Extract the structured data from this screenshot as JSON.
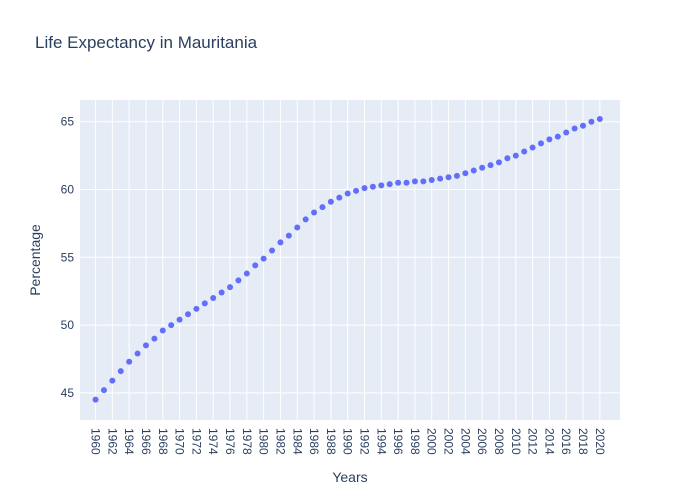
{
  "chart_data": {
    "type": "scatter",
    "title": "Life Expectancy in Mauritania",
    "xlabel": "Years",
    "ylabel": "Percentage",
    "xlim": [
      1958.2,
      1962.0
    ],
    "ylim": [
      43.0,
      66.6
    ],
    "x_tick_labels": [
      "1960",
      "1962",
      "1964",
      "1966",
      "1968",
      "1970",
      "1972",
      "1974",
      "1976",
      "1978",
      "1980",
      "1982",
      "1984",
      "1986",
      "1988",
      "1990",
      "1992",
      "1994",
      "1996",
      "1998",
      "2000",
      "2002",
      "2004",
      "2006",
      "2008",
      "2010",
      "2012",
      "2014",
      "2016",
      "2018",
      "2020"
    ],
    "y_ticks": [
      45,
      50,
      55,
      60,
      65
    ],
    "grid": true,
    "marker_color": "#636efa",
    "plot_background": "#e5ecf6",
    "series": [
      {
        "x": [
          1960,
          1961,
          1962,
          1963,
          1964,
          1965,
          1966,
          1967,
          1968,
          1969,
          1970,
          1971,
          1972,
          1973,
          1974,
          1975,
          1976,
          1977,
          1978,
          1979,
          1980,
          1981,
          1982,
          1983,
          1984,
          1985,
          1986,
          1987,
          1988,
          1989,
          1990,
          1991,
          1992,
          1993,
          1994,
          1995,
          1996,
          1997,
          1998,
          1999,
          2000,
          2001,
          2002,
          2003,
          2004,
          2005,
          2006,
          2007,
          2008,
          2009,
          2010,
          2011,
          2012,
          2013,
          2014,
          2015,
          2016,
          2017,
          2018,
          2019,
          2020
        ],
        "y": [
          44.5,
          45.2,
          45.9,
          46.6,
          47.3,
          47.9,
          48.5,
          49.0,
          49.6,
          50.0,
          50.4,
          50.8,
          51.2,
          51.6,
          52.0,
          52.4,
          52.8,
          53.3,
          53.8,
          54.4,
          54.9,
          55.5,
          56.1,
          56.6,
          57.2,
          57.8,
          58.3,
          58.7,
          59.1,
          59.4,
          59.7,
          59.9,
          60.1,
          60.2,
          60.3,
          60.4,
          60.5,
          60.5,
          60.6,
          60.6,
          60.7,
          60.8,
          60.9,
          61.0,
          61.2,
          61.4,
          61.6,
          61.8,
          62.0,
          62.3,
          62.5,
          62.8,
          63.1,
          63.4,
          63.7,
          63.9,
          64.2,
          64.5,
          64.7,
          65.0,
          65.2
        ]
      }
    ]
  }
}
